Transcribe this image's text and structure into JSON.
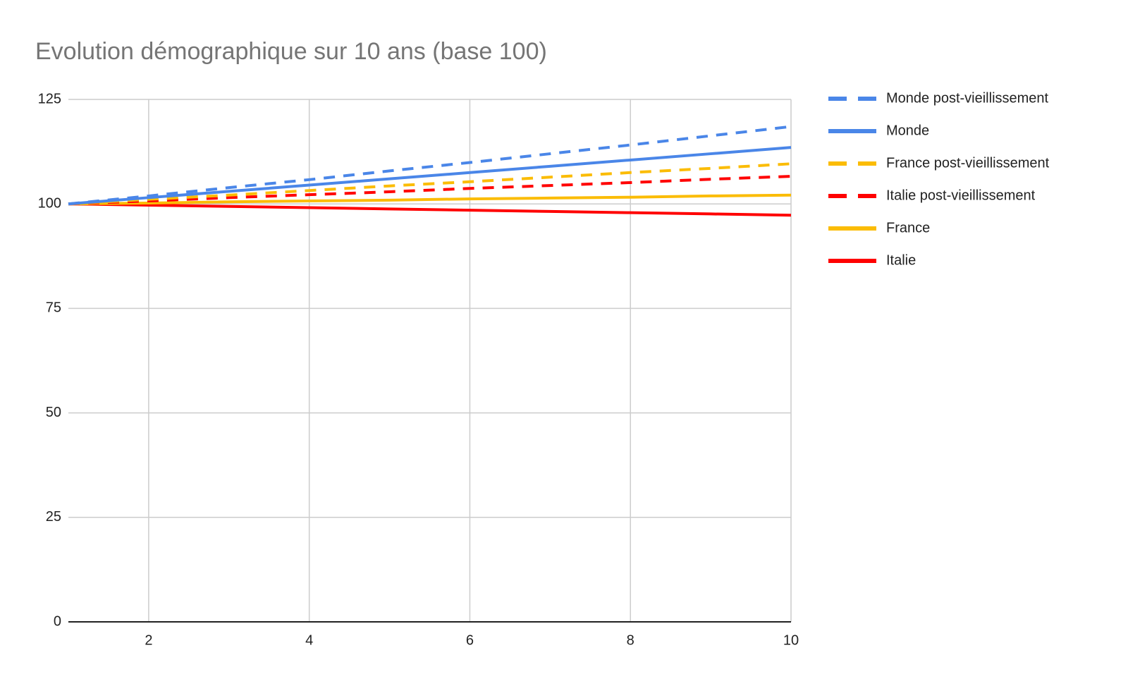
{
  "chart_data": {
    "type": "line",
    "title": "Evolution démographique sur 10 ans (base 100)",
    "x": [
      1,
      2,
      3,
      4,
      5,
      6,
      7,
      8,
      9,
      10
    ],
    "series": [
      {
        "name": "Monde post-vieillissement",
        "color": "#4a86e8",
        "dashed": true,
        "values": [
          100,
          101.9,
          103.9,
          105.8,
          107.9,
          109.9,
          112.0,
          114.1,
          116.3,
          118.5
        ]
      },
      {
        "name": "Monde",
        "color": "#4a86e8",
        "dashed": false,
        "values": [
          100,
          101.5,
          103,
          104.5,
          106,
          107.5,
          109,
          110.5,
          112,
          113.5
        ]
      },
      {
        "name": "France post-vieillissement",
        "color": "#fbbc04",
        "dashed": true,
        "values": [
          100,
          101.1,
          102.1,
          103.2,
          104.3,
          105.3,
          106.4,
          107.5,
          108.5,
          109.6
        ]
      },
      {
        "name": "Italie post-vieillissement",
        "color": "#ff0000",
        "dashed": true,
        "values": [
          100,
          100.7,
          101.5,
          102.2,
          102.9,
          103.7,
          104.4,
          105.1,
          105.9,
          106.6
        ]
      },
      {
        "name": "France",
        "color": "#fbbc04",
        "dashed": false,
        "values": [
          100,
          100.2,
          100.5,
          100.7,
          100.9,
          101.2,
          101.4,
          101.6,
          101.9,
          102.1
        ]
      },
      {
        "name": "Italie",
        "color": "#ff0000",
        "dashed": false,
        "values": [
          100,
          99.7,
          99.4,
          99.1,
          98.8,
          98.5,
          98.2,
          97.9,
          97.6,
          97.3
        ]
      }
    ],
    "xlim": [
      1,
      10
    ],
    "xticks": [
      2,
      4,
      6,
      8,
      10
    ],
    "ylim": [
      0,
      125
    ],
    "yticks": [
      0,
      25,
      50,
      75,
      100,
      125
    ],
    "grid": true,
    "legend": "right"
  }
}
